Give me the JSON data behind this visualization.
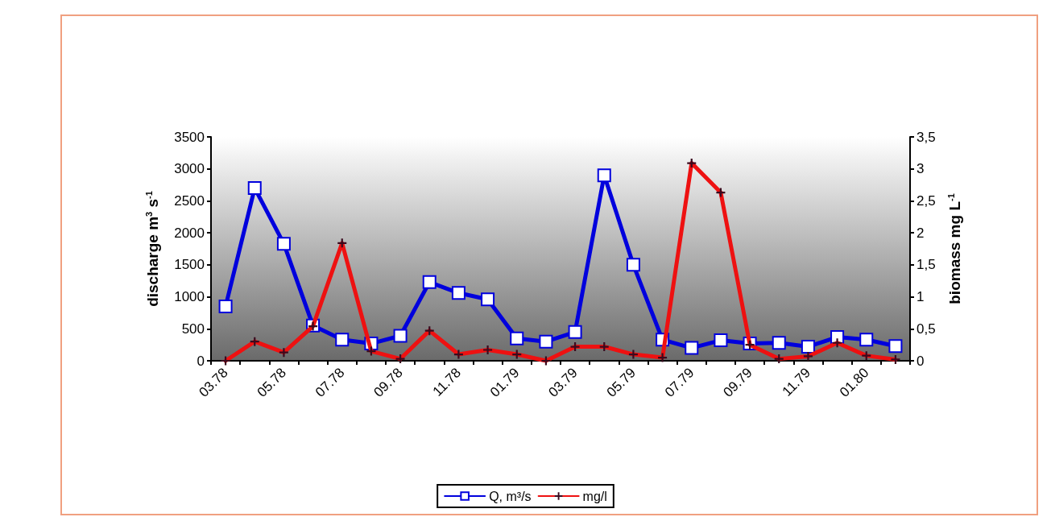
{
  "chart_data": {
    "type": "line",
    "categories": [
      "03.78",
      null,
      "05.78",
      null,
      "07.78",
      null,
      "09.78",
      null,
      "11.78",
      null,
      "01.79",
      null,
      "03.79",
      null,
      "05.79",
      null,
      "07.79",
      null,
      "09.79",
      null,
      "11.79",
      null,
      "01.80",
      null
    ],
    "ylabel": "discharge m$^{3}$ s$^{-1}$",
    "y2label": "biomass mg L$^{-1}$",
    "ylim": [
      0,
      3500
    ],
    "yticks": [
      0,
      500,
      1000,
      1500,
      2000,
      2500,
      3000,
      3500
    ],
    "y2lim": [
      0,
      3.5
    ],
    "y2ticks": [
      0,
      {
        "value": 0.5,
        "label": "0,5"
      },
      1,
      {
        "value": 1.5,
        "label": "1,5"
      },
      2,
      {
        "value": 2.5,
        "label": "2,5"
      },
      3,
      {
        "value": 3.5,
        "label": "3,5"
      }
    ],
    "series": [
      {
        "name": "Q, m³/s",
        "color": "#0000dd",
        "marker": "square",
        "values": [
          850,
          2700,
          1830,
          550,
          330,
          270,
          390,
          1230,
          1060,
          960,
          350,
          300,
          450,
          2900,
          1500,
          330,
          200,
          320,
          270,
          280,
          220,
          370,
          330,
          230
        ]
      },
      {
        "name": "mg/l",
        "color": "#ee1111",
        "marker": "cross",
        "axis": "y2",
        "values": [
          0,
          0.3,
          0.13,
          0.54,
          1.84,
          0.15,
          0.03,
          0.47,
          0.1,
          0.17,
          0.1,
          0,
          0.22,
          0.22,
          0.1,
          0.05,
          3.09,
          2.63,
          0.25,
          0.03,
          0.07,
          0.28,
          0.08,
          0.02
        ]
      }
    ],
    "legend": "bottom",
    "grid": false,
    "line_style": "solid"
  }
}
